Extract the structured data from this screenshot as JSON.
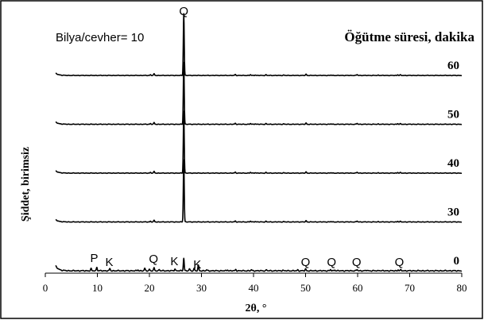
{
  "chart_data": {
    "type": "line",
    "title": "",
    "xlabel": "2θ, °",
    "ylabel": "Şiddet, birimsiz",
    "xlim": [
      0,
      80
    ],
    "x_ticks": [
      0,
      10,
      20,
      30,
      40,
      50,
      60,
      70,
      80
    ],
    "grid": false,
    "annotations": {
      "ratio": "Bilya/cevher= 10",
      "legend_title": "Öğütme süresi, dakika"
    },
    "series": [
      {
        "name": "0",
        "offset": 0
      },
      {
        "name": "30",
        "offset": 1
      },
      {
        "name": "40",
        "offset": 2
      },
      {
        "name": "50",
        "offset": 3
      },
      {
        "name": "60",
        "offset": 4
      }
    ],
    "pattern_top": {
      "low_angle_start": [
        2,
        3.6
      ],
      "peaks": [
        {
          "x": 20.2,
          "h": 1.2
        },
        {
          "x": 20.9,
          "h": 2.6
        },
        {
          "x": 26.6,
          "h": 100
        },
        {
          "x": 36.5,
          "h": 1.5
        },
        {
          "x": 39.4,
          "h": 1.3
        },
        {
          "x": 40.3,
          "h": 0.9
        },
        {
          "x": 42.4,
          "h": 1.1
        },
        {
          "x": 45.8,
          "h": 0.6
        },
        {
          "x": 50.1,
          "h": 1.9
        },
        {
          "x": 54.9,
          "h": 0.7
        },
        {
          "x": 59.9,
          "h": 1.5
        },
        {
          "x": 64.0,
          "h": 0.5
        },
        {
          "x": 67.7,
          "h": 1.2
        },
        {
          "x": 68.2,
          "h": 0.8
        }
      ]
    },
    "pattern_0": {
      "low_angle_start": [
        2,
        4.2
      ],
      "peaks": [
        {
          "x": 8.8,
          "h": 1.8
        },
        {
          "x": 9.9,
          "h": 3.2
        },
        {
          "x": 12.4,
          "h": 1.9
        },
        {
          "x": 17.8,
          "h": 0.8
        },
        {
          "x": 19.1,
          "h": 2.1
        },
        {
          "x": 20.0,
          "h": 1.4
        },
        {
          "x": 20.9,
          "h": 2.5
        },
        {
          "x": 21.9,
          "h": 1.2
        },
        {
          "x": 24.9,
          "h": 1.8
        },
        {
          "x": 26.6,
          "h": 11
        },
        {
          "x": 27.7,
          "h": 1.6
        },
        {
          "x": 28.6,
          "h": 2.2
        },
        {
          "x": 29.4,
          "h": 4.6
        },
        {
          "x": 31.0,
          "h": 0.8
        },
        {
          "x": 35.0,
          "h": 0.9
        },
        {
          "x": 36.6,
          "h": 1.1
        },
        {
          "x": 39.6,
          "h": 0.9
        },
        {
          "x": 42.5,
          "h": 0.8
        },
        {
          "x": 45.6,
          "h": 0.6
        },
        {
          "x": 48.5,
          "h": 0.7
        },
        {
          "x": 50.0,
          "h": 1.5
        },
        {
          "x": 54.8,
          "h": 1.0
        },
        {
          "x": 55.6,
          "h": 0.9
        },
        {
          "x": 59.9,
          "h": 1.1
        },
        {
          "x": 61.8,
          "h": 0.6
        },
        {
          "x": 64.2,
          "h": 0.5
        },
        {
          "x": 67.8,
          "h": 0.9
        },
        {
          "x": 68.3,
          "h": 0.7
        }
      ]
    },
    "peak_labels": [
      {
        "text": "Q",
        "x": 26.6,
        "trace": "60"
      },
      {
        "text": "P",
        "x": 9.4,
        "trace": "0"
      },
      {
        "text": "K",
        "x": 12.3,
        "trace": "0"
      },
      {
        "text": "Q",
        "x": 20.8,
        "trace": "0"
      },
      {
        "text": "K",
        "x": 24.8,
        "trace": "0"
      },
      {
        "text": "K",
        "x": 29.2,
        "trace": "0"
      },
      {
        "text": "Q",
        "x": 50.0,
        "trace": "0"
      },
      {
        "text": "Q",
        "x": 55.0,
        "trace": "0"
      },
      {
        "text": "Q",
        "x": 59.8,
        "trace": "0"
      },
      {
        "text": "Q",
        "x": 68.0,
        "trace": "0"
      }
    ]
  }
}
